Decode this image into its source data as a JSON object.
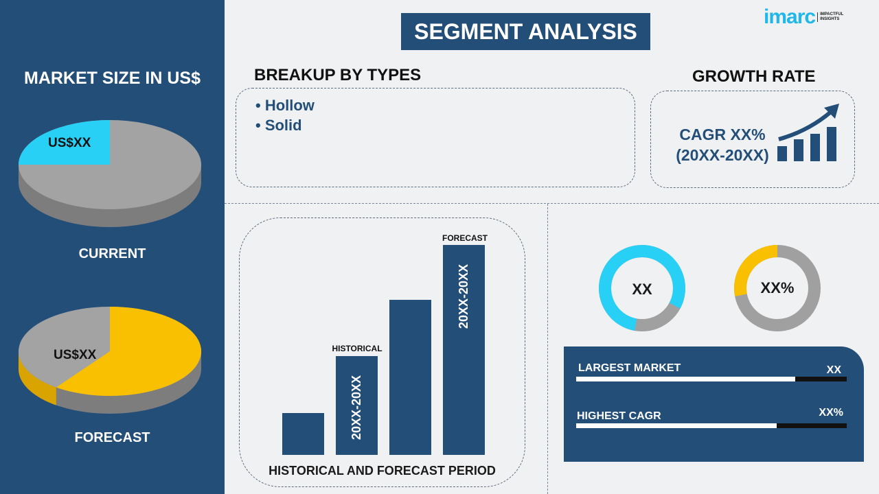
{
  "title": "SEGMENT ANALYSIS",
  "logo": {
    "brand": "imarc",
    "tagline": "IMPACTFUL INSIGHTS"
  },
  "colors": {
    "navy": "#234e78",
    "cyan": "#29d0f5",
    "yellow": "#f8c000",
    "grey": "#a0a0a0"
  },
  "market_size": {
    "heading": "MARKET SIZE IN US$",
    "current": {
      "label": "CURRENT",
      "value": "US$XX",
      "share_percent": 25
    },
    "forecast": {
      "label": "FORECAST",
      "value": "US$XX",
      "share_percent": 60
    }
  },
  "breakup": {
    "heading": "BREAKUP BY TYPES",
    "items": [
      "• Hollow",
      "• Solid"
    ]
  },
  "growth": {
    "heading": "GROWTH RATE",
    "cagr": "CAGR XX%",
    "period": "(20XX-20XX)"
  },
  "period_chart": {
    "caption": "HISTORICAL AND FORECAST PERIOD",
    "historical_label": "HISTORICAL",
    "forecast_label": "FORECAST",
    "historical_range": "20XX-20XX",
    "forecast_range": "20XX-20XX",
    "bar_levels_percent": [
      20,
      47,
      74,
      100
    ]
  },
  "donuts": [
    {
      "label": "XX",
      "fill_percent": 80,
      "color": "#29d0f5"
    },
    {
      "label": "XX%",
      "fill_percent": 28,
      "color": "#f8c000"
    }
  ],
  "stats": [
    {
      "label": "LARGEST MARKET",
      "value": "XX",
      "fill_percent": 81
    },
    {
      "label": "HIGHEST CAGR",
      "value": "XX%",
      "fill_percent": 74
    }
  ]
}
